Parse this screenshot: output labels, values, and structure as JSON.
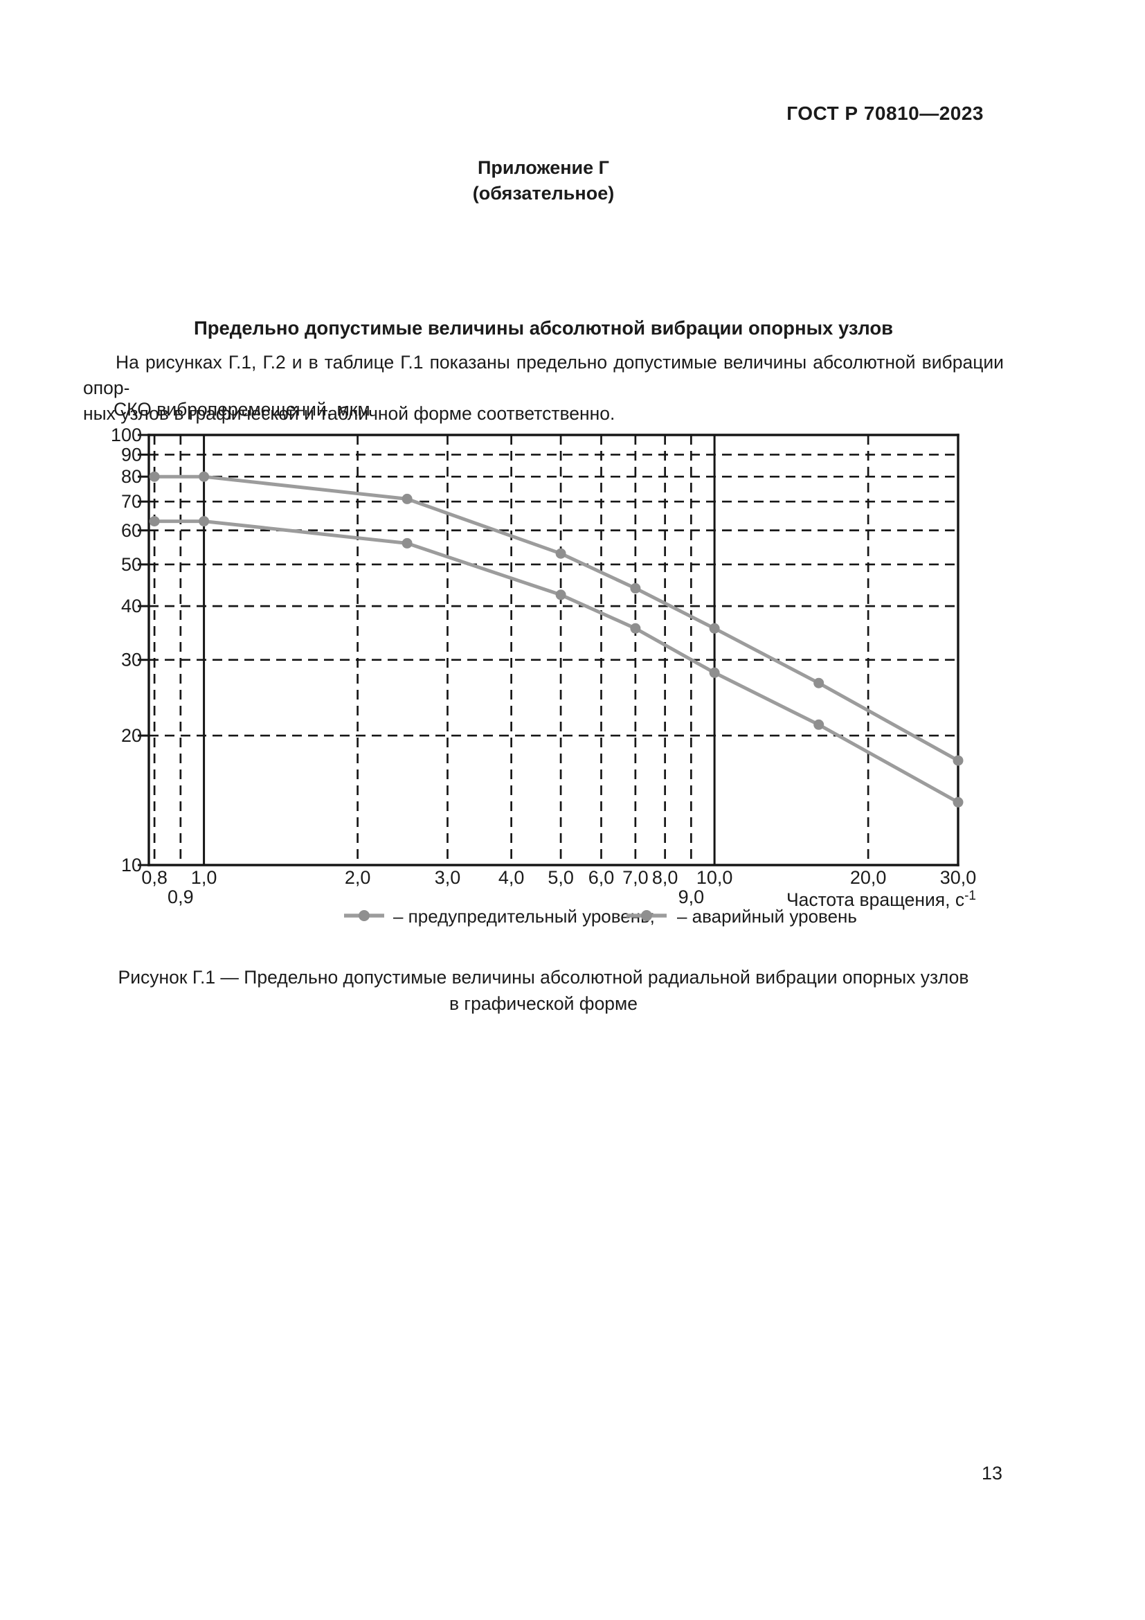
{
  "page": {
    "header_right": "ГОСТ Р 70810—2023",
    "appendix_label": "Приложение Г",
    "appendix_kind": "(обязательное)",
    "section_title": "Предельно допустимые величины абсолютной вибрации опорных узлов",
    "paragraph_lines": [
      "На рисунках Г.1, Г.2 и в таблице Г.1 показаны предельно допустимые величины абсолютной вибрации опор-",
      "ных узлов в графической и табличной форме соответственно."
    ],
    "figure_caption_lines": [
      "Рисунок Г.1 — Предельно допустимые величины абсолютной радиальной вибрации опорных узлов",
      "в графической форме"
    ],
    "page_number": "13"
  },
  "chart_data": {
    "type": "line",
    "x_scale": "log",
    "y_scale": "log",
    "xlim": [
      0.78,
      30
    ],
    "ylim": [
      10,
      100
    ],
    "ylabel": "СКО виброперемещений, мкм",
    "xlabel": "Частота вращения, с⁻¹",
    "xlabel_base": "Частота вращения, с",
    "xlabel_sup": "-1",
    "grid": "dashed black grid, solid decade lines at 1.0 and 10.0",
    "x": [
      0.8,
      1.0,
      2.5,
      5.0,
      7.0,
      10.0,
      16.0,
      30.0
    ],
    "series": [
      {
        "name": "предупредительный уровень",
        "values": [
          63,
          63,
          56,
          42.5,
          35.5,
          28,
          21.2,
          14
        ],
        "color": "#9c9c9c",
        "marker": "circle",
        "marker_color": "#8f8f8f"
      },
      {
        "name": "аварийный уровень",
        "values": [
          80,
          80,
          71,
          53,
          44,
          35.5,
          26.5,
          17.5
        ],
        "color": "#9c9c9c",
        "marker": "circle",
        "marker_color": "#8f8f8f"
      }
    ],
    "legend": [
      {
        "label": "– предупредительный уровень;"
      },
      {
        "label": "– аварийный уровень"
      }
    ],
    "legend_position": "bottom center",
    "x_ticks": [
      {
        "v": 0.8,
        "label": "0,8",
        "row": 1
      },
      {
        "v": 0.9,
        "label": "0,9",
        "row": 2
      },
      {
        "v": 1.0,
        "label": "1,0",
        "row": 1,
        "solid": true
      },
      {
        "v": 2.0,
        "label": "2,0",
        "row": 1
      },
      {
        "v": 3.0,
        "label": "3,0",
        "row": 1
      },
      {
        "v": 4.0,
        "label": "4,0",
        "row": 1
      },
      {
        "v": 5.0,
        "label": "5,0",
        "row": 1
      },
      {
        "v": 6.0,
        "label": "6,0",
        "row": 1
      },
      {
        "v": 7.0,
        "label": "7,0",
        "row": 1
      },
      {
        "v": 8.0,
        "label": "8,0",
        "row": 1
      },
      {
        "v": 9.0,
        "label": "9,0",
        "row": 2
      },
      {
        "v": 10.0,
        "label": "10,0",
        "row": 1,
        "solid": true
      },
      {
        "v": 20.0,
        "label": "20,0",
        "row": 1
      },
      {
        "v": 30.0,
        "label": "30,0",
        "row": 1,
        "border": true
      }
    ],
    "y_ticks": [
      {
        "v": 100,
        "label": "100"
      },
      {
        "v": 90,
        "label": "90"
      },
      {
        "v": 80,
        "label": "80"
      },
      {
        "v": 70,
        "label": "70"
      },
      {
        "v": 60,
        "label": "60"
      },
      {
        "v": 50,
        "label": "50"
      },
      {
        "v": 40,
        "label": "40"
      },
      {
        "v": 30,
        "label": "30"
      },
      {
        "v": 20,
        "label": "20"
      },
      {
        "v": 10,
        "label": "10"
      }
    ]
  }
}
